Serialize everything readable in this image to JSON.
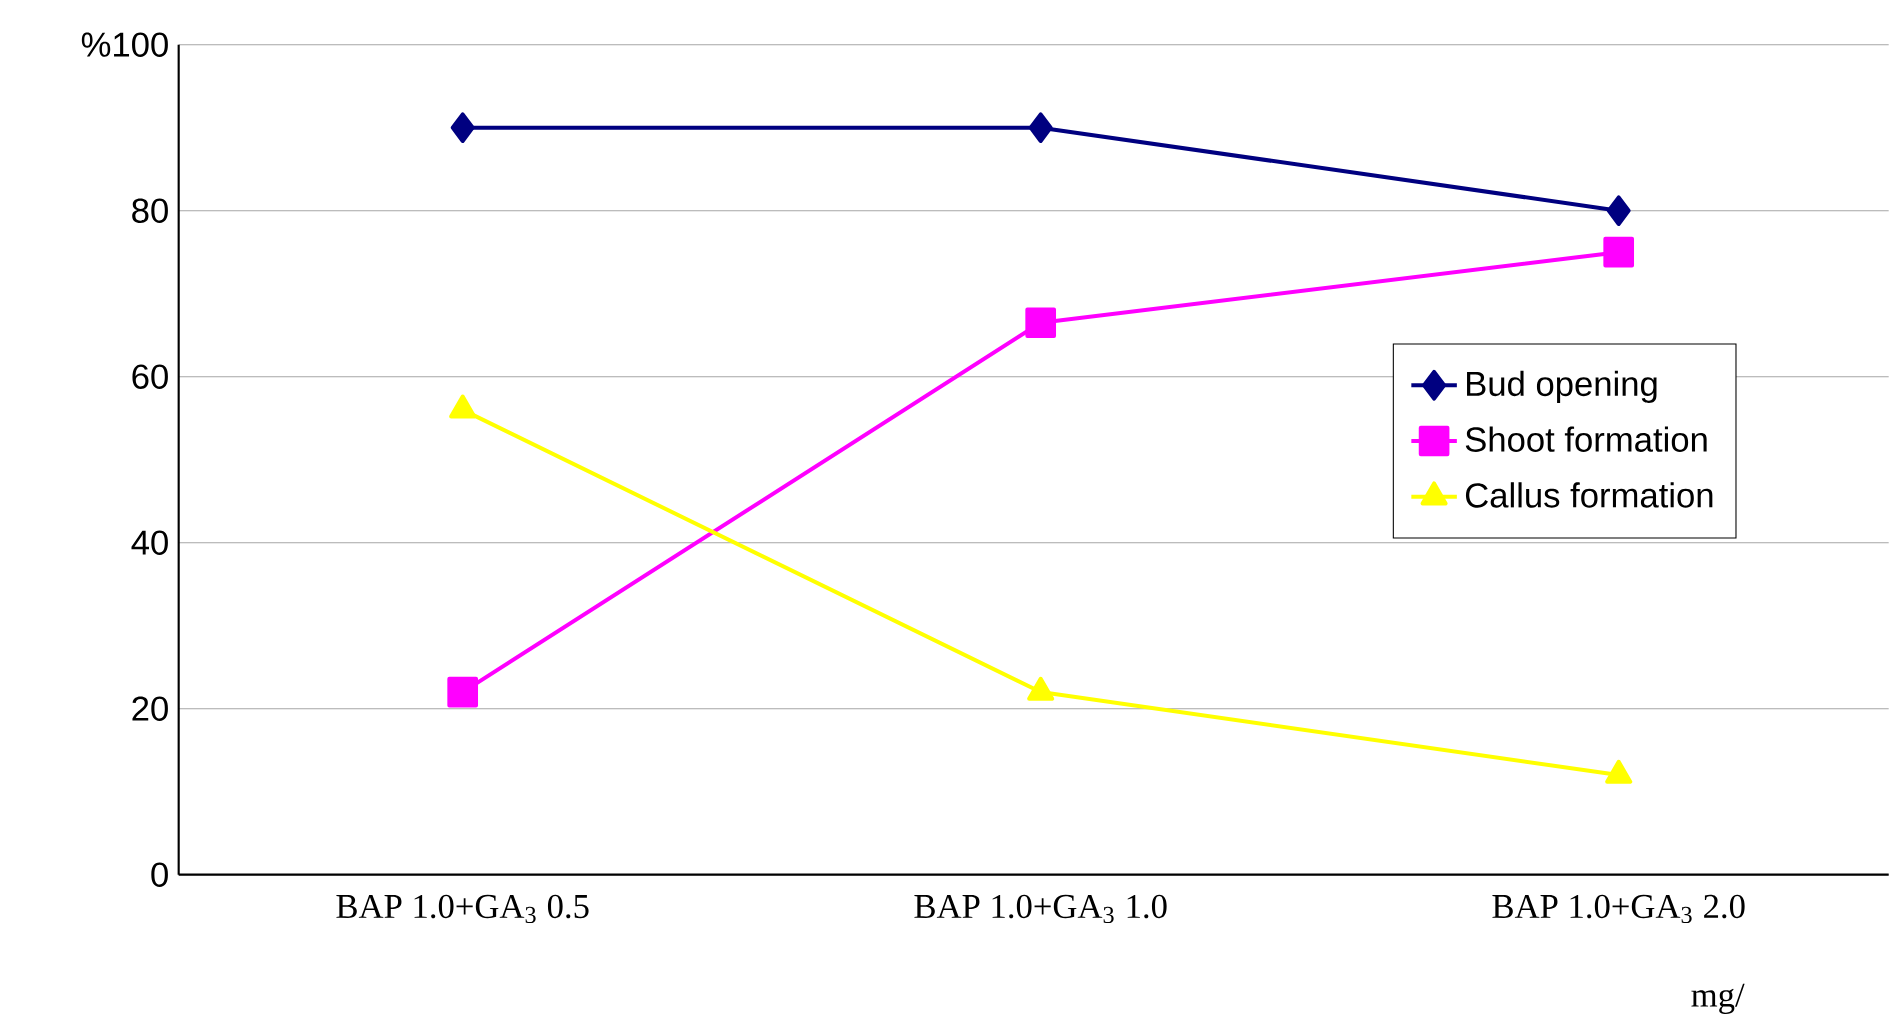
{
  "chart_data": {
    "type": "line",
    "categories": [
      "BAP  1.0+GA$_{3}$  0.5",
      "BAP  1.0+GA$_{3}$  1.0",
      "BAP  1.0+GA$_{3}$  2.0"
    ],
    "xlabel": "mg/",
    "series": [
      {
        "name": "Bud opening",
        "color": "#000080",
        "marker": "diamond",
        "values": [
          90,
          90,
          80
        ]
      },
      {
        "name": "Shoot formation",
        "color": "#ff00ff",
        "marker": "square",
        "values": [
          22,
          66.5,
          75
        ]
      },
      {
        "name": "Callus formation",
        "color": "#ffff00",
        "marker": "triangle",
        "values": [
          56,
          22,
          12
        ]
      }
    ],
    "ylim": [
      0,
      100
    ],
    "yticks": [
      0,
      20,
      40,
      60,
      80,
      {
        "value": 100,
        "label": "%100"
      }
    ],
    "grid": "y",
    "legend": "right",
    "line_style": "solid"
  }
}
